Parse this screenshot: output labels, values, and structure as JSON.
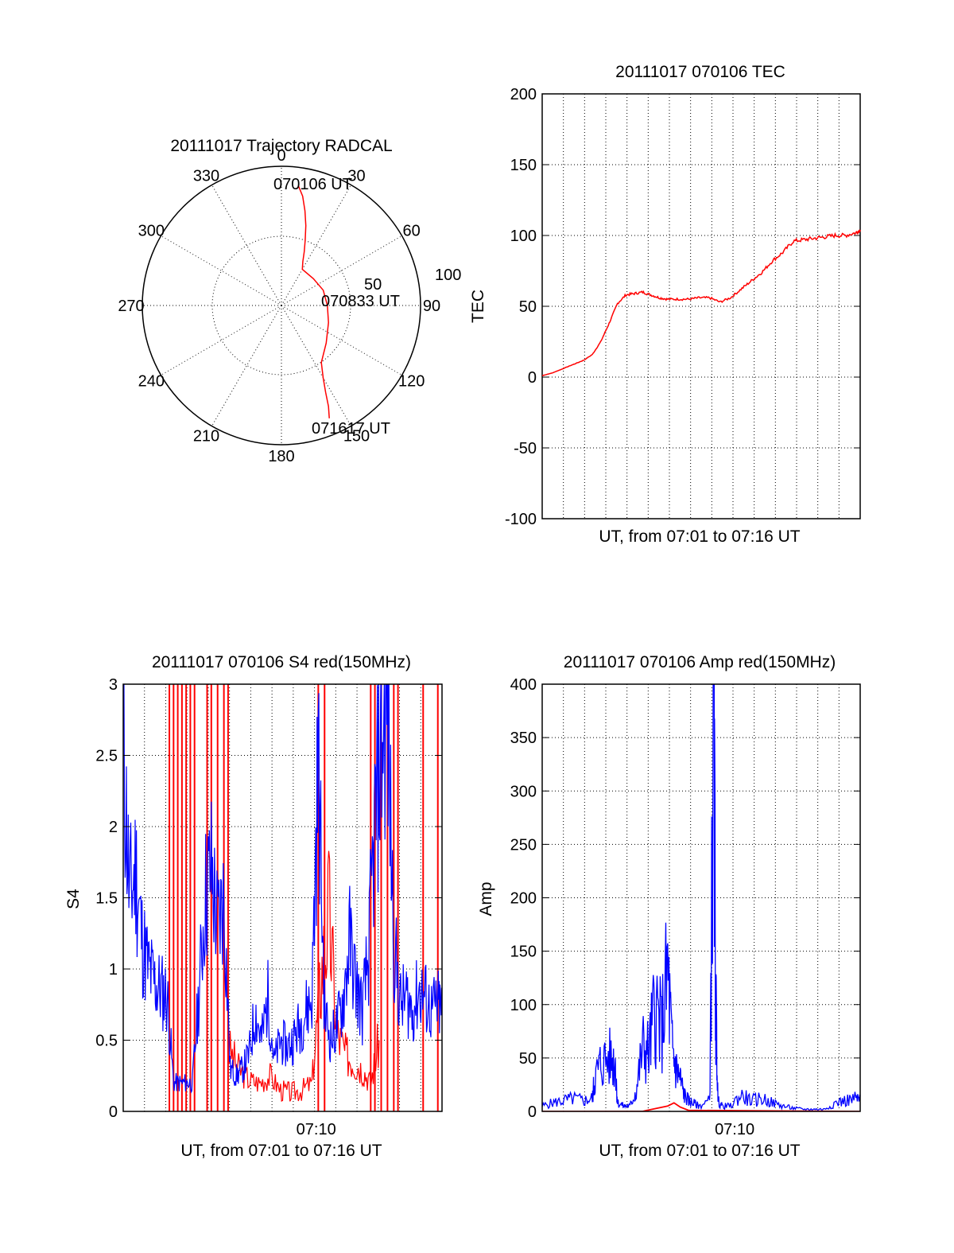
{
  "colors": {
    "red": "#ff0000",
    "blue": "#0000ff",
    "axis": "#000000"
  },
  "chart_data": [
    {
      "type": "polar",
      "title": "20111017 Trajectory RADCAL",
      "angle_labels": [
        "0",
        "30",
        "60",
        "90",
        "120",
        "150",
        "180",
        "210",
        "240",
        "270",
        "300",
        "330"
      ],
      "radius_labels": [
        "50",
        "100"
      ],
      "rmax": 100,
      "trajectory": {
        "color": "red",
        "points": [
          [
            8,
            87
          ],
          [
            11,
            80
          ],
          [
            14,
            70
          ],
          [
            17,
            60
          ],
          [
            20,
            50
          ],
          [
            23,
            42
          ],
          [
            26,
            35
          ],
          [
            30,
            30
          ],
          [
            50,
            30
          ],
          [
            70,
            32
          ],
          [
            90,
            33
          ],
          [
            110,
            36
          ],
          [
            130,
            42
          ],
          [
            145,
            50
          ],
          [
            150,
            60
          ],
          [
            153,
            70
          ],
          [
            155,
            80
          ],
          [
            157,
            88
          ]
        ],
        "annotations": [
          {
            "text": "070106 UT",
            "angle": 8,
            "r": 87
          },
          {
            "text": "070833 UT",
            "angle": 90,
            "r": 33
          },
          {
            "text": "071617 UT",
            "angle": 157,
            "r": 88
          }
        ]
      }
    },
    {
      "type": "line",
      "title": "20111017 070106 TEC",
      "xlabel": "UT, from 07:01 to 07:16 UT",
      "ylabel": "TEC",
      "xlim": [
        0,
        15.2
      ],
      "ylim": [
        -100,
        200
      ],
      "yticks": [
        "200",
        "150",
        "100",
        "50",
        "0",
        "-50",
        "-100"
      ],
      "x_grid_count": 15,
      "series": [
        {
          "color": "red",
          "x": [
            0,
            0.5,
            1.0,
            1.5,
            2.0,
            2.4,
            2.8,
            3.2,
            3.6,
            4.0,
            4.4,
            4.8,
            5.2,
            5.6,
            6.0,
            6.5,
            7.0,
            7.5,
            8.0,
            8.5,
            9.0,
            9.5,
            10.0,
            10.5,
            11.0,
            11.5,
            12.0,
            12.5,
            13.0,
            13.5,
            14.0,
            14.5,
            15.0,
            15.2
          ],
          "y": [
            1,
            3,
            6,
            9,
            12,
            16,
            25,
            38,
            52,
            58,
            59,
            60,
            58,
            56,
            55,
            55,
            55,
            56,
            56,
            53,
            56,
            62,
            68,
            74,
            82,
            88,
            96,
            97,
            98,
            99,
            100,
            100,
            102,
            104
          ]
        }
      ]
    },
    {
      "type": "line",
      "title": "20111017 070106 S4 red(150MHz)",
      "xlabel": "UT, from 07:01 to 07:16 UT",
      "ylabel": "S4",
      "xlim": [
        0,
        15.2
      ],
      "ylim": [
        0,
        3
      ],
      "yticks": [
        "3",
        "2.5",
        "2",
        "1.5",
        "1",
        "0.5",
        "0"
      ],
      "xtick_label": "07:10",
      "xtick_value": 9.2,
      "x_grid_count": 15,
      "series": [
        {
          "color": "red",
          "x": [
            5.0,
            5.5,
            6.0,
            6.5,
            7.0,
            7.5,
            8.0,
            8.5,
            9.0,
            9.4,
            9.8,
            10.2,
            10.6,
            11.0,
            11.4,
            11.8,
            12.2
          ],
          "y": [
            0.45,
            0.3,
            0.22,
            0.2,
            0.25,
            0.15,
            0.13,
            0.15,
            0.2,
            0.9,
            1.4,
            0.55,
            0.4,
            0.35,
            0.3,
            0.2,
            0.5
          ],
          "spikes_x": [
            2.2,
            2.4,
            2.6,
            2.8,
            3.0,
            3.2,
            3.4,
            4.0,
            4.2,
            4.5,
            4.8,
            5.0,
            9.3,
            9.6,
            11.8,
            12.0,
            12.3,
            12.6,
            12.9,
            13.1,
            14.3,
            15.0
          ]
        },
        {
          "color": "blue",
          "x": [
            0,
            0.3,
            0.6,
            0.9,
            1.2,
            1.5,
            1.8,
            2.1,
            2.4,
            2.7,
            3.0,
            3.3,
            3.6,
            3.9,
            4.2,
            4.5,
            4.8,
            5.1,
            5.4,
            5.7,
            6.0,
            6.3,
            6.6,
            6.9,
            7.2,
            7.5,
            7.8,
            8.1,
            8.4,
            8.7,
            9.0,
            9.3,
            9.6,
            9.9,
            10.2,
            10.5,
            10.8,
            11.1,
            11.4,
            11.7,
            12.0,
            12.3,
            12.6,
            12.9,
            13.2,
            13.5,
            13.8,
            14.1,
            14.4,
            14.7,
            15.0,
            15.2
          ],
          "y": [
            2.6,
            1.5,
            1.7,
            1.2,
            1.0,
            0.9,
            0.85,
            0.8,
            0.2,
            0.2,
            0.2,
            0.2,
            0.8,
            1.5,
            1.7,
            1.3,
            1.5,
            0.3,
            0.25,
            0.3,
            0.4,
            0.7,
            0.5,
            0.8,
            0.35,
            0.5,
            0.45,
            0.5,
            0.6,
            0.7,
            0.8,
            2.5,
            0.7,
            0.5,
            0.6,
            0.8,
            1.2,
            0.9,
            0.7,
            1.1,
            2.0,
            2.6,
            2.8,
            1.2,
            0.75,
            0.8,
            0.7,
            0.85,
            0.8,
            0.7,
            0.75,
            0.7
          ]
        }
      ]
    },
    {
      "type": "line",
      "title": "20111017 070106 Amp red(150MHz)",
      "xlabel": "UT, from 07:01 to 07:16 UT",
      "ylabel": "Amp",
      "xlim": [
        0,
        15.2
      ],
      "ylim": [
        0,
        400
      ],
      "yticks": [
        "400",
        "350",
        "300",
        "250",
        "200",
        "150",
        "100",
        "50",
        "0"
      ],
      "xtick_label": "07:10",
      "xtick_value": 9.2,
      "x_grid_count": 15,
      "series": [
        {
          "color": "blue",
          "x": [
            0,
            0.5,
            1.0,
            1.5,
            2.0,
            2.4,
            2.5,
            2.8,
            3.2,
            3.5,
            3.6,
            3.9,
            4.2,
            4.5,
            4.8,
            5.1,
            5.4,
            5.7,
            6.0,
            6.2,
            6.4,
            6.6,
            6.8,
            7.0,
            7.2,
            7.5,
            8.0,
            8.2,
            8.3,
            8.4,
            8.6,
            9.0,
            9.5,
            10.0,
            10.5,
            11.0,
            11.5,
            12.0,
            12.5,
            13.0,
            13.5,
            14.0,
            14.5,
            15.0,
            15.2
          ],
          "y": [
            5,
            8,
            10,
            12,
            10,
            12,
            30,
            45,
            50,
            45,
            8,
            5,
            5,
            20,
            60,
            55,
            100,
            75,
            130,
            60,
            40,
            30,
            15,
            10,
            8,
            5,
            10,
            355,
            100,
            10,
            5,
            5,
            15,
            10,
            12,
            8,
            5,
            3,
            2,
            2,
            2,
            8,
            10,
            12,
            10
          ]
        },
        {
          "color": "red",
          "x": [
            0,
            4.8,
            5.0,
            5.5,
            6.0,
            6.3,
            6.6,
            7.0,
            15.2
          ],
          "y": [
            0,
            0,
            1,
            3,
            5,
            8,
            4,
            1,
            0
          ]
        }
      ]
    }
  ]
}
